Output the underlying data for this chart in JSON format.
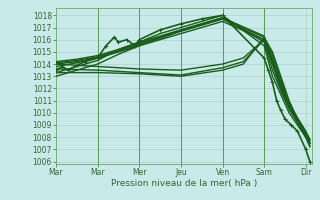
{
  "bg_color": "#c8eae8",
  "grid_color": "#a8ccc8",
  "line_color": "#1a5c1a",
  "vline_color": "#5a9a5a",
  "xlim": [
    0,
    6.15
  ],
  "ylim": [
    1005.8,
    1018.6
  ],
  "yticks": [
    1006,
    1007,
    1008,
    1009,
    1010,
    1011,
    1012,
    1013,
    1014,
    1015,
    1016,
    1017,
    1018
  ],
  "xtick_labels": [
    "Mar",
    "Mar",
    "Mer",
    "Jeu",
    "Ven",
    "Sam",
    "Dir"
  ],
  "xtick_positions": [
    0,
    1,
    2,
    3,
    4,
    5,
    6
  ],
  "xlabel": "Pression niveau de la mer( hPa )",
  "lines": [
    {
      "x": [
        0,
        0.15,
        0.3,
        0.5,
        0.7,
        1.0,
        1.2,
        1.4,
        1.5,
        1.7,
        1.9,
        2.0,
        2.5,
        3.0,
        3.5,
        4.0,
        5.0,
        5.1,
        5.2,
        5.3,
        5.4,
        5.5,
        5.65,
        5.8,
        6.0,
        6.1
      ],
      "y": [
        1013.5,
        1013.8,
        1013.5,
        1013.9,
        1014.2,
        1014.5,
        1015.5,
        1016.2,
        1015.8,
        1016.0,
        1015.5,
        1016.0,
        1016.8,
        1017.3,
        1017.7,
        1018.0,
        1014.5,
        1013.5,
        1012.5,
        1011.0,
        1010.2,
        1009.5,
        1009.0,
        1008.5,
        1007.0,
        1006.0
      ],
      "marker": "+",
      "ms": 3,
      "lw": 1.2
    },
    {
      "x": [
        0,
        0.5,
        1.0,
        1.5,
        2.0,
        2.5,
        3.0,
        3.5,
        4.0,
        5.0,
        5.2,
        5.4,
        5.6,
        5.8,
        6.0,
        6.1
      ],
      "y": [
        1013.3,
        1013.8,
        1014.3,
        1015.2,
        1015.8,
        1016.5,
        1017.0,
        1017.5,
        1018.0,
        1015.5,
        1013.0,
        1011.5,
        1010.0,
        1009.0,
        1008.0,
        1007.5
      ],
      "marker": null,
      "ms": 0,
      "lw": 1.0
    },
    {
      "x": [
        0,
        0.5,
        1.0,
        1.5,
        2.0,
        2.5,
        3.0,
        3.5,
        4.0,
        5.0,
        5.2,
        5.4,
        5.6,
        5.8,
        6.0,
        6.1
      ],
      "y": [
        1013.0,
        1013.5,
        1014.0,
        1014.8,
        1015.5,
        1016.2,
        1016.8,
        1017.3,
        1017.8,
        1015.8,
        1013.5,
        1011.8,
        1010.3,
        1009.2,
        1008.0,
        1007.2
      ],
      "marker": null,
      "ms": 0,
      "lw": 1.0
    },
    {
      "x": [
        0,
        0.5,
        1.0,
        1.5,
        2.0,
        2.5,
        3.0,
        3.5,
        4.0,
        5.0,
        5.2,
        5.4,
        5.6,
        5.8,
        6.0,
        6.1
      ],
      "y": [
        1014.0,
        1014.2,
        1014.5,
        1015.0,
        1015.5,
        1016.0,
        1016.5,
        1017.0,
        1017.5,
        1016.0,
        1014.0,
        1012.0,
        1010.5,
        1009.3,
        1008.2,
        1007.5
      ],
      "marker": null,
      "ms": 0,
      "lw": 1.0
    },
    {
      "x": [
        0,
        0.5,
        1.0,
        1.5,
        2.0,
        2.5,
        3.0,
        3.5,
        4.0,
        5.0,
        5.2,
        5.4,
        5.6,
        5.8,
        6.0,
        6.1
      ],
      "y": [
        1014.1,
        1014.3,
        1014.6,
        1015.1,
        1015.7,
        1016.2,
        1016.7,
        1017.2,
        1017.7,
        1016.2,
        1014.2,
        1012.2,
        1010.7,
        1009.5,
        1008.4,
        1007.7
      ],
      "marker": null,
      "ms": 0,
      "lw": 1.0
    },
    {
      "x": [
        0,
        0.5,
        1.0,
        1.5,
        2.0,
        2.5,
        3.0,
        3.5,
        4.0,
        5.0,
        5.2,
        5.4,
        5.6,
        5.8,
        6.0,
        6.1
      ],
      "y": [
        1013.8,
        1014.1,
        1014.5,
        1015.0,
        1015.6,
        1016.1,
        1016.7,
        1017.2,
        1017.7,
        1016.0,
        1014.0,
        1012.0,
        1010.5,
        1009.3,
        1008.2,
        1007.5
      ],
      "marker": null,
      "ms": 0,
      "lw": 1.0
    },
    {
      "x": [
        0,
        0.5,
        1.0,
        1.5,
        2.0,
        2.5,
        3.0,
        3.5,
        4.0,
        5.0,
        5.2,
        5.4,
        5.6,
        5.8,
        6.0,
        6.1
      ],
      "y": [
        1014.2,
        1014.4,
        1014.7,
        1015.2,
        1015.8,
        1016.3,
        1016.8,
        1017.3,
        1017.8,
        1016.3,
        1014.3,
        1012.3,
        1010.8,
        1009.6,
        1008.5,
        1007.8
      ],
      "marker": null,
      "ms": 0,
      "lw": 1.0
    },
    {
      "x": [
        0,
        0.5,
        1.0,
        1.5,
        2.0,
        3.0,
        4.0,
        4.5,
        5.0,
        5.2,
        5.4,
        5.6,
        5.8,
        6.0,
        6.1
      ],
      "y": [
        1014.0,
        1013.9,
        1013.8,
        1013.7,
        1013.6,
        1013.5,
        1014.0,
        1014.5,
        1016.0,
        1014.5,
        1012.5,
        1010.8,
        1009.5,
        1008.3,
        1007.8
      ],
      "marker": null,
      "ms": 0,
      "lw": 1.0
    },
    {
      "x": [
        0,
        1.0,
        2.0,
        3.0,
        4.0,
        4.5,
        5.0,
        5.2,
        5.4,
        5.6,
        5.8,
        6.0,
        6.1
      ],
      "y": [
        1013.3,
        1013.3,
        1013.2,
        1013.0,
        1013.5,
        1014.0,
        1016.2,
        1015.0,
        1013.0,
        1011.0,
        1009.5,
        1008.2,
        1007.5
      ],
      "marker": null,
      "ms": 0,
      "lw": 1.0
    },
    {
      "x": [
        0,
        1.0,
        2.0,
        3.0,
        4.0,
        4.5,
        5.0,
        5.2,
        5.4,
        5.6,
        5.8,
        6.0,
        6.1
      ],
      "y": [
        1013.6,
        1013.5,
        1013.3,
        1013.1,
        1013.7,
        1014.2,
        1016.0,
        1014.8,
        1012.8,
        1010.8,
        1009.3,
        1008.0,
        1007.3
      ],
      "marker": null,
      "ms": 0,
      "lw": 1.0
    }
  ],
  "vlines": [
    1,
    2,
    3,
    4,
    5
  ],
  "figsize": [
    3.2,
    2.0
  ],
  "dpi": 100
}
